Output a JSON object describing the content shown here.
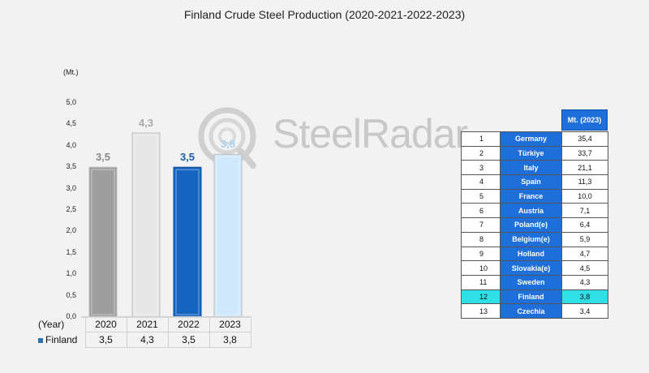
{
  "chart_data": {
    "type": "bar",
    "title": "Finland Crude Steel Production (2020-2021-2022-2023)",
    "unit_label": "(Mt.)",
    "x_axis_label": "(Year)",
    "categories": [
      "2020",
      "2021",
      "2022",
      "2023"
    ],
    "series": [
      {
        "name": "Finland",
        "values": [
          3.5,
          4.3,
          3.5,
          3.8
        ]
      }
    ],
    "value_labels": [
      "3,5",
      "4,3",
      "3,5",
      "3,8"
    ],
    "bar_colors": [
      "#9e9e9e",
      "#e6e6e6",
      "#1565c0",
      "#cfe8fb"
    ],
    "label_colors": [
      "#8a8a8a",
      "#a8a8a8",
      "#1a5fa8",
      "#a9cfee"
    ],
    "ylim": [
      0,
      5
    ],
    "yticks": [
      "0,0",
      "0,5",
      "1,0",
      "1,5",
      "2,0",
      "2,5",
      "3,0",
      "3,5",
      "4,0",
      "4,5",
      "5,0"
    ],
    "grid": false,
    "data_table": {
      "header": "(Year)",
      "years": [
        "2020",
        "2021",
        "2022",
        "2023"
      ],
      "row_label": "Finland",
      "row_values": [
        "3,5",
        "4,3",
        "3,5",
        "3,8"
      ]
    }
  },
  "watermark": {
    "text": "SteelRadar"
  },
  "ranking": {
    "header": "Mt. (2023)",
    "rows": [
      {
        "rank": "1",
        "country": "Germany",
        "value": "35,4"
      },
      {
        "rank": "2",
        "country": "Türkiye",
        "value": "33,7"
      },
      {
        "rank": "3",
        "country": "Italy",
        "value": "21,1"
      },
      {
        "rank": "4",
        "country": "Spain",
        "value": "11,3"
      },
      {
        "rank": "5",
        "country": "France",
        "value": "10,0"
      },
      {
        "rank": "6",
        "country": "Austria",
        "value": "7,1"
      },
      {
        "rank": "7",
        "country": "Poland(e)",
        "value": "6,4"
      },
      {
        "rank": "8",
        "country": "Belgium(e)",
        "value": "5,9"
      },
      {
        "rank": "9",
        "country": "Holland",
        "value": "4,7"
      },
      {
        "rank": "10",
        "country": "Slovakia(e)",
        "value": "4,5"
      },
      {
        "rank": "11",
        "country": "Sweden",
        "value": "4,3"
      },
      {
        "rank": "12",
        "country": "Finland",
        "value": "3,8",
        "highlight": true
      },
      {
        "rank": "13",
        "country": "Czechia",
        "value": "3,4"
      }
    ],
    "highlight_color": "#2fe0e6",
    "country_cell_color": "#1e6fd9"
  }
}
